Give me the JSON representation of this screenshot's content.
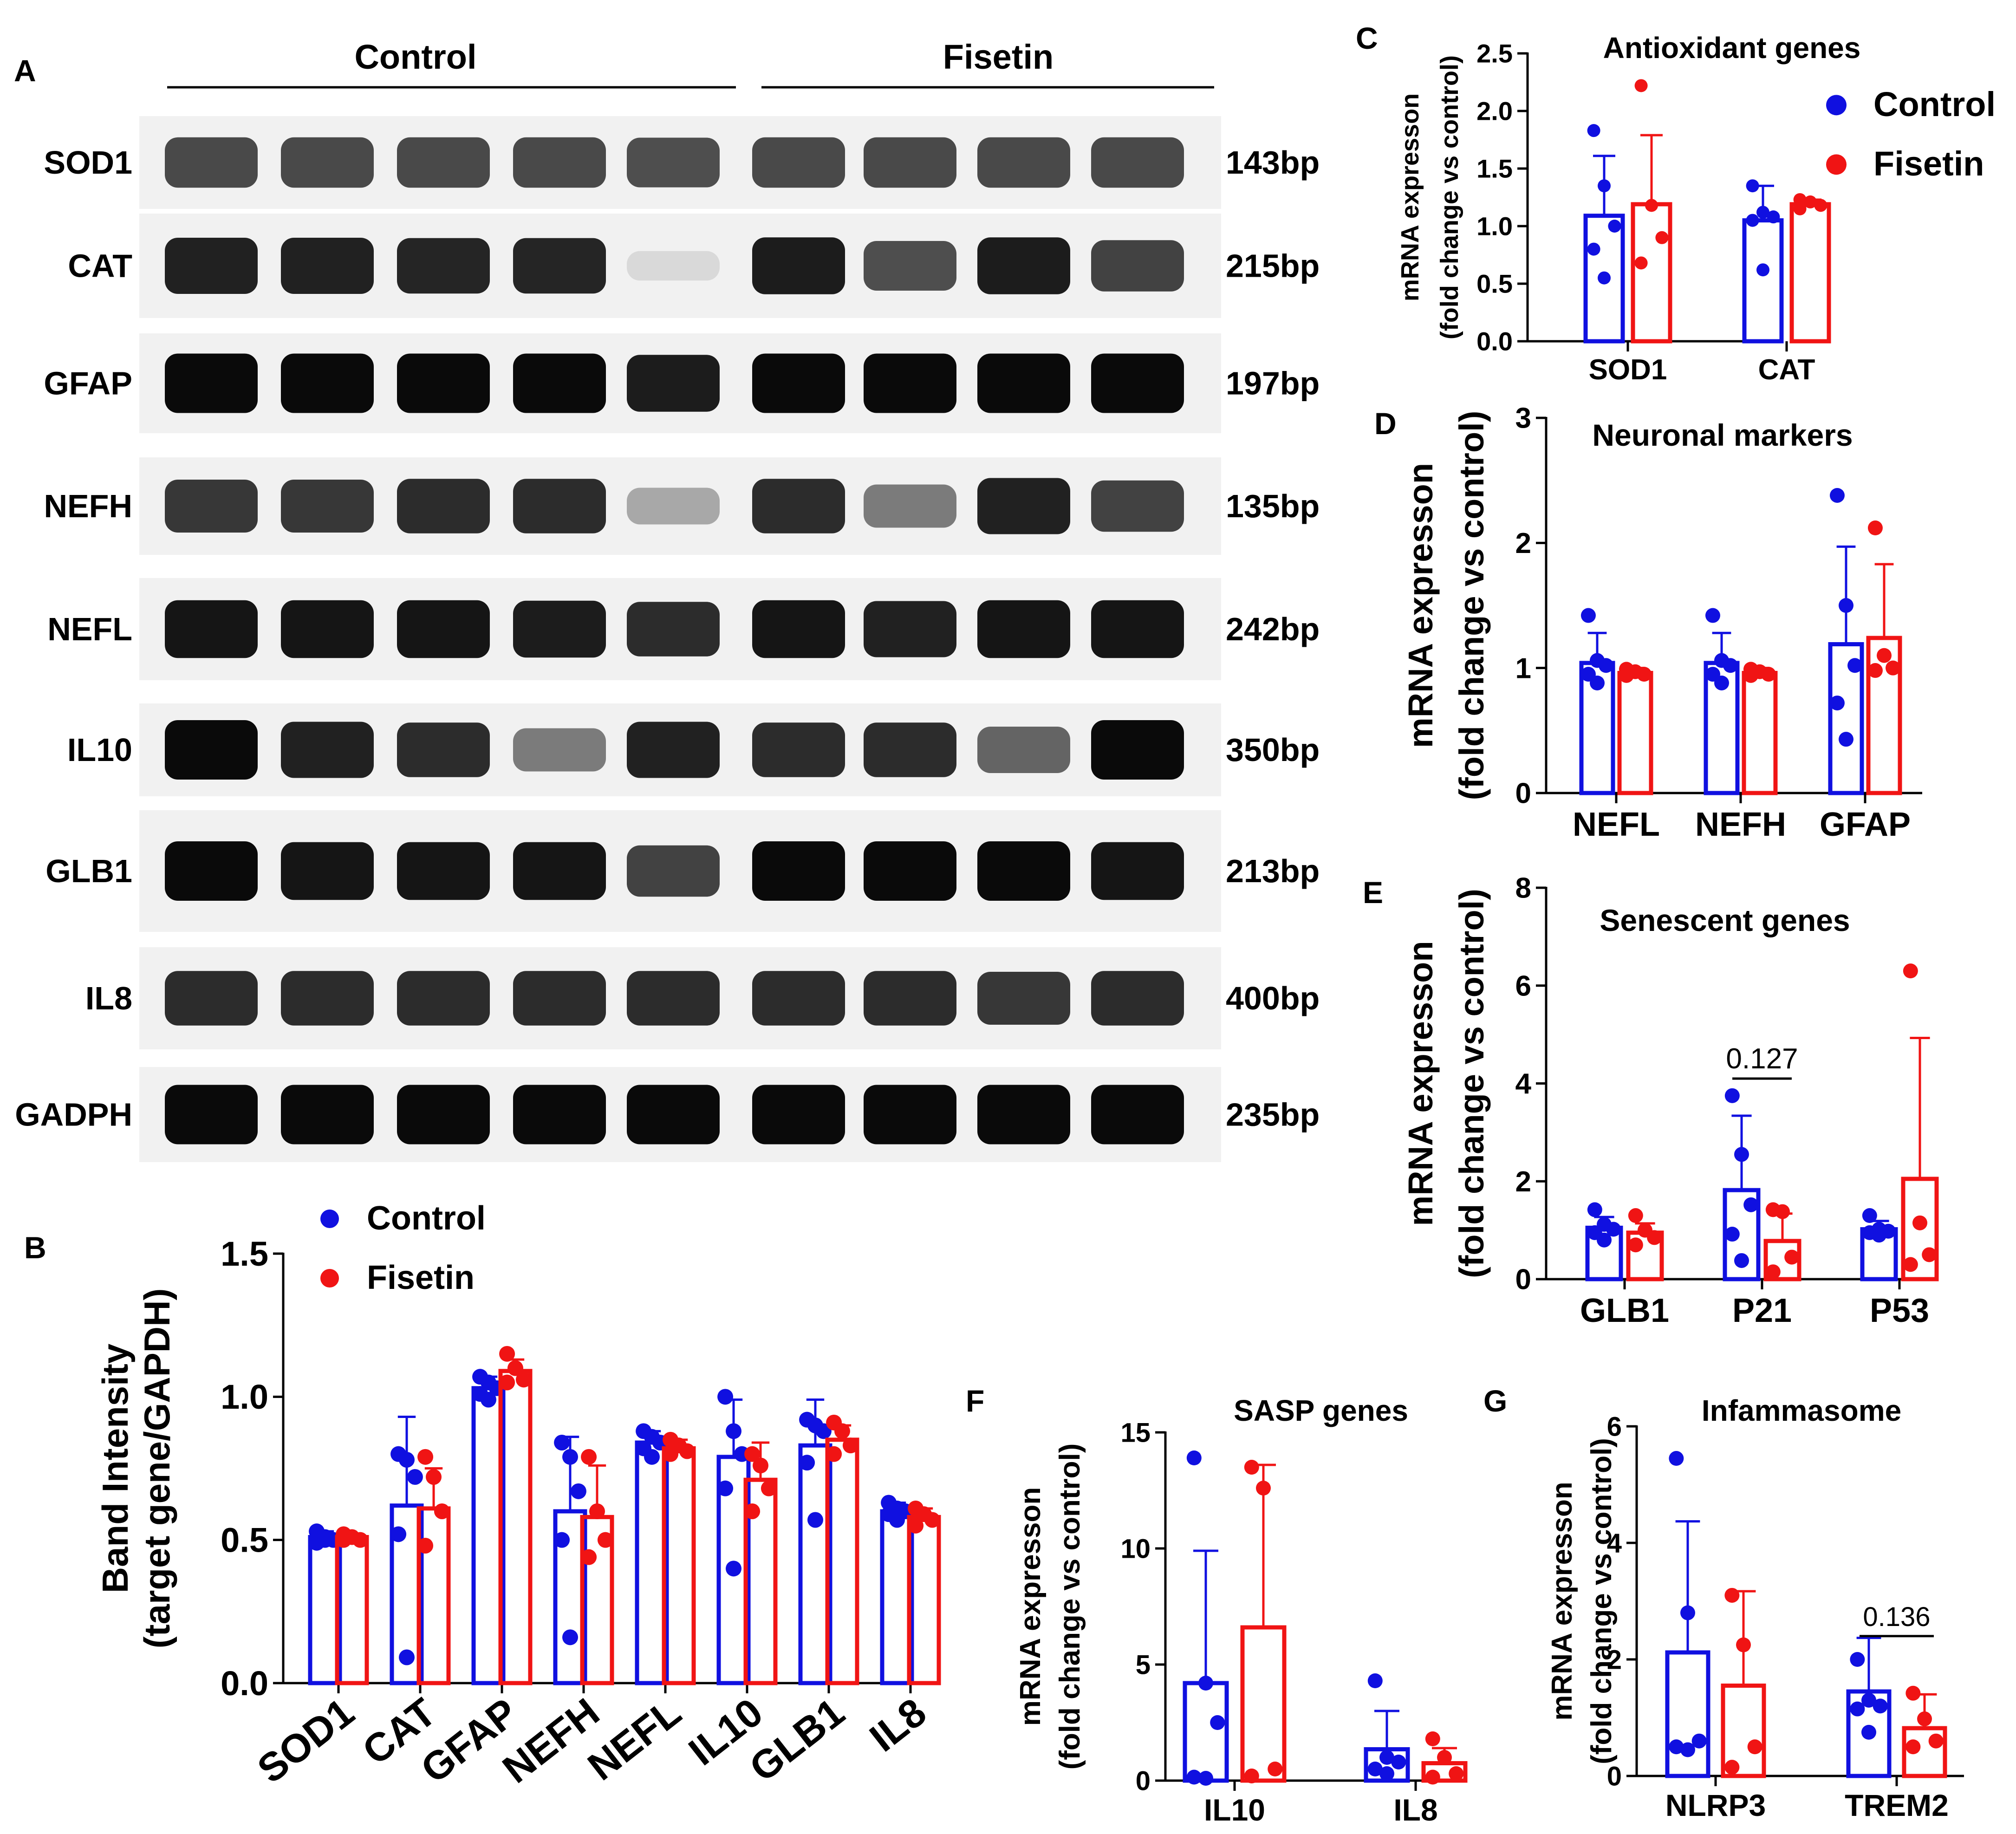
{
  "colors": {
    "control": "#1010e0",
    "fisetin": "#f01414",
    "axis": "#000000",
    "gel_bg": "#f1f1f1",
    "band": "#0c0c0c"
  },
  "panel_labels": {
    "A": "A",
    "B": "B",
    "C": "C",
    "D": "D",
    "E": "E",
    "F": "F",
    "G": "G"
  },
  "gel": {
    "group_control": "Control",
    "group_fisetin": "Fisetin",
    "rows": [
      {
        "gene": "SOD1",
        "size": "143bp",
        "intensity": [
          0.72,
          0.72,
          0.72,
          0.72,
          0.7,
          0.72,
          0.72,
          0.72,
          0.72
        ]
      },
      {
        "gene": "CAT",
        "size": "215bp",
        "intensity": [
          0.9,
          0.9,
          0.88,
          0.88,
          0.08,
          0.92,
          0.7,
          0.92,
          0.75
        ]
      },
      {
        "gene": "GFAP",
        "size": "197bp",
        "intensity": [
          1,
          1,
          1,
          1,
          0.92,
          1,
          1,
          1,
          1
        ]
      },
      {
        "gene": "NEFH",
        "size": "135bp",
        "intensity": [
          0.8,
          0.8,
          0.85,
          0.85,
          0.3,
          0.85,
          0.5,
          0.9,
          0.75
        ]
      },
      {
        "gene": "NEFL",
        "size": "242bp",
        "intensity": [
          0.95,
          0.95,
          0.95,
          0.92,
          0.85,
          0.95,
          0.9,
          0.95,
          0.95
        ]
      },
      {
        "gene": "IL10",
        "size": "350bp",
        "intensity": [
          1,
          0.9,
          0.85,
          0.5,
          0.9,
          0.85,
          0.85,
          0.6,
          1
        ]
      },
      {
        "gene": "GLB1",
        "size": "213bp",
        "intensity": [
          1,
          0.95,
          0.95,
          0.95,
          0.75,
          1,
          1,
          1,
          0.95
        ]
      },
      {
        "gene": "IL8",
        "size": "400bp",
        "intensity": [
          0.85,
          0.85,
          0.85,
          0.85,
          0.85,
          0.85,
          0.85,
          0.8,
          0.85
        ]
      },
      {
        "gene": "GADPH",
        "size": "235bp",
        "intensity": [
          1,
          1,
          1,
          1,
          1,
          1,
          1,
          1,
          1
        ]
      }
    ]
  },
  "chart_data": [
    {
      "id": "B",
      "type": "bar",
      "title": "",
      "xlabel": "",
      "ylabel_line1": "Band Intensity",
      "ylabel_line2": "(target gene/GAPDH)",
      "ylim": [
        0,
        1.5
      ],
      "yticks": [
        "0.0",
        "0.5",
        "1.0",
        "1.5"
      ],
      "categories": [
        "SOD1",
        "CAT",
        "GFAP",
        "NEFH",
        "NEFL",
        "IL10",
        "GLB1",
        "IL8"
      ],
      "legend": [
        "Control",
        "Fisetin"
      ],
      "series": [
        {
          "name": "Control",
          "values": [
            0.51,
            0.62,
            1.03,
            0.6,
            0.84,
            0.79,
            0.83,
            0.6
          ],
          "sd": [
            0.02,
            0.31,
            0.04,
            0.26,
            0.04,
            0.2,
            0.16,
            0.03
          ],
          "points": [
            [
              0.53,
              0.51,
              0.5,
              0.49,
              0.5
            ],
            [
              0.8,
              0.78,
              0.72,
              0.52,
              0.09
            ],
            [
              1.07,
              1.05,
              1.03,
              1.01,
              0.99
            ],
            [
              0.84,
              0.79,
              0.67,
              0.5,
              0.16
            ],
            [
              0.88,
              0.86,
              0.84,
              0.82,
              0.79
            ],
            [
              1.0,
              0.88,
              0.8,
              0.68,
              0.4
            ],
            [
              0.92,
              0.9,
              0.88,
              0.77,
              0.57
            ],
            [
              0.63,
              0.61,
              0.6,
              0.59,
              0.57
            ]
          ]
        },
        {
          "name": "Fisetin",
          "values": [
            0.51,
            0.61,
            1.09,
            0.58,
            0.82,
            0.71,
            0.85,
            0.58
          ],
          "sd": [
            0.01,
            0.14,
            0.04,
            0.18,
            0.03,
            0.13,
            0.05,
            0.03
          ],
          "points": [
            [
              0.52,
              0.51,
              0.5,
              0.5
            ],
            [
              0.79,
              0.72,
              0.6,
              0.48
            ],
            [
              1.15,
              1.1,
              1.06,
              1.05
            ],
            [
              0.79,
              0.6,
              0.5,
              0.44
            ],
            [
              0.85,
              0.83,
              0.81,
              0.8
            ],
            [
              0.8,
              0.76,
              0.68,
              0.6
            ],
            [
              0.91,
              0.88,
              0.83,
              0.8
            ],
            [
              0.61,
              0.59,
              0.57,
              0.55
            ]
          ]
        }
      ]
    },
    {
      "id": "C",
      "type": "bar",
      "title": "Antioxidant genes",
      "xlabel": "",
      "ylabel_line1": "mRNA expresson",
      "ylabel_line2": "(fold change vs control)",
      "ylim": [
        0,
        2.5
      ],
      "yticks": [
        "0.0",
        "0.5",
        "1.0",
        "1.5",
        "2.0",
        "2.5"
      ],
      "categories": [
        "SOD1",
        "CAT"
      ],
      "legend": [
        "Control",
        "Fisetin"
      ],
      "series": [
        {
          "name": "Control",
          "values": [
            1.09,
            1.05
          ],
          "sd": [
            0.52,
            0.3
          ],
          "points": [
            [
              1.83,
              1.35,
              1.0,
              0.8,
              0.55
            ],
            [
              1.35,
              1.12,
              1.08,
              1.05,
              0.62
            ]
          ]
        },
        {
          "name": "Fisetin",
          "values": [
            1.19,
            1.19
          ],
          "sd": [
            0.6,
            0.04
          ],
          "points": [
            [
              2.22,
              1.18,
              0.9,
              0.68
            ],
            [
              1.23,
              1.21,
              1.18,
              1.15
            ]
          ]
        }
      ]
    },
    {
      "id": "D",
      "type": "bar",
      "title": "Neuronal markers",
      "xlabel": "",
      "ylabel_line1": "mRNA expresson",
      "ylabel_line2": "(fold change vs control)",
      "ylim": [
        0,
        3
      ],
      "yticks": [
        "0",
        "1",
        "2",
        "3"
      ],
      "categories": [
        "NEFL",
        "NEFH",
        "GFAP"
      ],
      "legend": [],
      "series": [
        {
          "name": "Control",
          "values": [
            1.04,
            1.04,
            1.19
          ],
          "sd": [
            0.24,
            0.24,
            0.78
          ],
          "points": [
            [
              1.42,
              1.06,
              1.02,
              0.95,
              0.88
            ],
            [
              1.42,
              1.06,
              1.02,
              0.95,
              0.88
            ],
            [
              2.38,
              1.5,
              1.02,
              0.72,
              0.43
            ]
          ]
        },
        {
          "name": "Fisetin",
          "values": [
            0.96,
            0.96,
            1.24
          ],
          "sd": [
            0.04,
            0.04,
            0.59
          ],
          "points": [
            [
              0.99,
              0.97,
              0.95,
              0.94
            ],
            [
              0.99,
              0.97,
              0.95,
              0.94
            ],
            [
              2.12,
              1.1,
              1.0,
              0.98
            ]
          ]
        }
      ]
    },
    {
      "id": "E",
      "type": "bar",
      "title": "Senescent genes",
      "xlabel": "",
      "ylabel_line1": "mRNA expresson",
      "ylabel_line2": "(fold change vs control)",
      "ylim": [
        0,
        8
      ],
      "yticks": [
        "0",
        "2",
        "4",
        "6",
        "8"
      ],
      "categories": [
        "GLB1",
        "P21",
        "P53"
      ],
      "legend": [],
      "annotation": {
        "text": "0.127",
        "category": "P21",
        "y": 4.1
      },
      "series": [
        {
          "name": "Control",
          "values": [
            1.05,
            1.82,
            1.02
          ],
          "sd": [
            0.22,
            1.52,
            0.17
          ],
          "points": [
            [
              1.42,
              1.12,
              1.02,
              0.95,
              0.8
            ],
            [
              3.75,
              2.55,
              1.52,
              0.92,
              0.38
            ],
            [
              1.3,
              1.02,
              0.98,
              0.95,
              0.9
            ]
          ]
        },
        {
          "name": "Fisetin",
          "values": [
            0.95,
            0.78,
            2.05
          ],
          "sd": [
            0.19,
            0.56,
            2.88
          ],
          "points": [
            [
              1.3,
              1.0,
              0.85,
              0.7
            ],
            [
              1.42,
              1.38,
              0.45,
              0.15
            ],
            [
              6.3,
              1.15,
              0.5,
              0.3
            ]
          ]
        }
      ]
    },
    {
      "id": "F",
      "type": "bar",
      "title": "SASP genes",
      "xlabel": "",
      "ylabel_line1": "mRNA expresson",
      "ylabel_line2": "(fold change vs control)",
      "ylim": [
        0,
        15
      ],
      "yticks": [
        "0",
        "5",
        "10",
        "15"
      ],
      "categories": [
        "IL10",
        "IL8"
      ],
      "legend": [],
      "series": [
        {
          "name": "Control",
          "values": [
            4.2,
            1.35
          ],
          "sd": [
            5.7,
            1.65
          ],
          "points": [
            [
              13.9,
              4.2,
              2.5,
              0.15,
              0.1
            ],
            [
              4.3,
              1.0,
              0.8,
              0.5,
              0.3
            ]
          ]
        },
        {
          "name": "Fisetin",
          "values": [
            6.6,
            0.75
          ],
          "sd": [
            7.0,
            0.65
          ],
          "points": [
            [
              13.5,
              12.6,
              0.5,
              0.2
            ],
            [
              1.8,
              1.0,
              0.3,
              0.15
            ]
          ]
        }
      ]
    },
    {
      "id": "G",
      "type": "bar",
      "title": "Infammasome",
      "xlabel": "",
      "ylabel_line1": "mRNA expresson",
      "ylabel_line2": "(fold change vs control)",
      "ylim": [
        0,
        6
      ],
      "yticks": [
        "0",
        "2",
        "4",
        "6"
      ],
      "categories": [
        "NLRP3",
        "TREM2"
      ],
      "legend": [],
      "annotation": {
        "text": "0.136",
        "category": "TREM2",
        "y": 2.4
      },
      "series": [
        {
          "name": "Control",
          "values": [
            2.12,
            1.45
          ],
          "sd": [
            2.25,
            0.92
          ],
          "points": [
            [
              5.45,
              2.8,
              0.6,
              0.5,
              0.45
            ],
            [
              2.0,
              1.3,
              1.2,
              1.15,
              0.75
            ]
          ]
        },
        {
          "name": "Fisetin",
          "values": [
            1.55,
            0.82
          ],
          "sd": [
            1.62,
            0.58
          ],
          "points": [
            [
              3.1,
              2.25,
              0.5,
              0.15
            ],
            [
              1.42,
              0.98,
              0.6,
              0.5
            ]
          ]
        }
      ]
    }
  ]
}
